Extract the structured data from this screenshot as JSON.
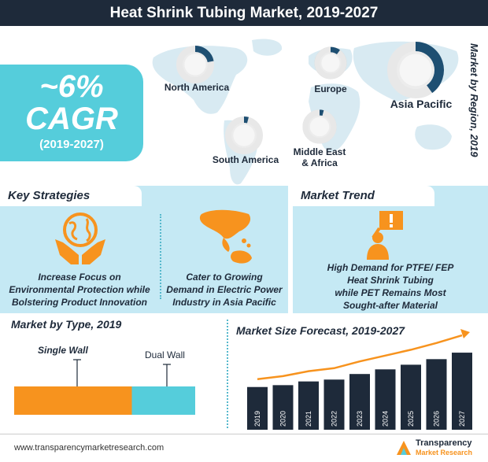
{
  "title": "Heat Shrink Tubing Market, 2019-2027",
  "cagr": {
    "value": "~6%",
    "label": "CAGR",
    "period": "(2019-2027)"
  },
  "region_section_title": "Market by Region, 2019",
  "regions": [
    {
      "name": "North America",
      "share": 0.22
    },
    {
      "name": "Europe",
      "share": 0.1
    },
    {
      "name": "Asia Pacific",
      "share": 0.4
    },
    {
      "name": "South America",
      "share": 0.04
    },
    {
      "name": "Middle East & Africa",
      "share": 0.04
    }
  ],
  "key_strategies": {
    "title": "Key Strategies",
    "items": [
      {
        "text_lines": [
          "Increase Focus on",
          "Environmental Protection while",
          "Bolstering Product Innovation"
        ],
        "icon": "hands-globe-icon"
      },
      {
        "text_lines": [
          "Cater to Growing",
          "Demand in Electric Power",
          "Industry in Asia Pacific"
        ],
        "icon": "asia-pacific-map-icon"
      }
    ]
  },
  "market_trend": {
    "title": "Market Trend",
    "text_lines": [
      "High Demand for PTFE/ FEP",
      "Heat Shrink Tubing",
      "while PET Remains Most",
      "Sought-after Material"
    ],
    "icon": "person-alert-sign-icon"
  },
  "chart_data": [
    {
      "type": "bar",
      "title": "Market by Type, 2019",
      "orientation": "horizontal-stacked",
      "categories": [
        "Single Wall",
        "Dual Wall"
      ],
      "values": [
        65,
        35
      ],
      "colors": [
        "#f7931e",
        "#55cddb"
      ]
    },
    {
      "type": "bar",
      "title": "Market Size Forecast, 2019-2027",
      "categories": [
        "2019",
        "2020",
        "2021",
        "2022",
        "2023",
        "2024",
        "2025",
        "2026",
        "2027"
      ],
      "values": [
        46,
        48,
        52,
        54,
        60,
        65,
        70,
        76,
        83
      ],
      "ylim": [
        0,
        100
      ],
      "color": "#1e2a3a",
      "trend_arrow_color": "#f7931e"
    }
  ],
  "footer": {
    "url": "www.transparencymarketresearch.com",
    "logo_line1": "Transparency",
    "logo_line2": "Market Research"
  }
}
